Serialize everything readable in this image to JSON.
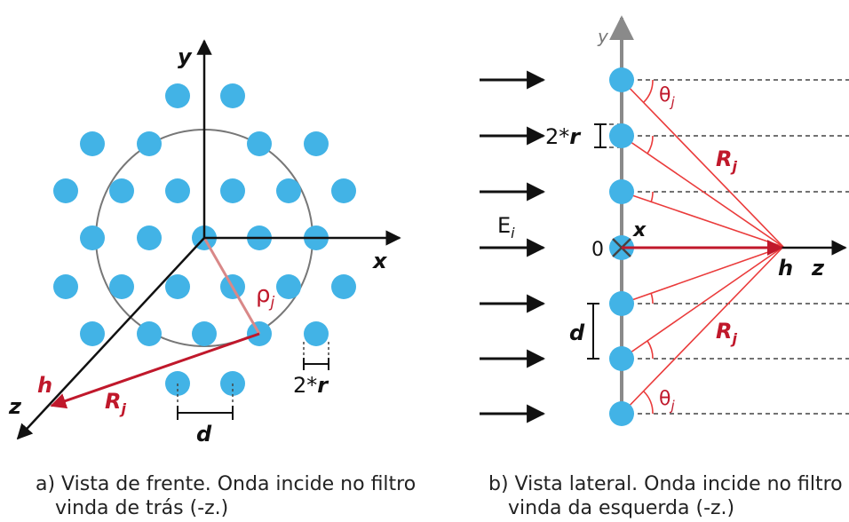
{
  "colors": {
    "dot": "#42b3e6",
    "red_line": "#ea3b3b",
    "red_arrow": "#c0182b",
    "rho_line": "#d98888",
    "axis": "#111111",
    "circle": "#777777",
    "gray_axis": "#8a8a8a"
  },
  "panel_a": {
    "axis_y": "y",
    "axis_x": "x",
    "axis_z": "z",
    "h": "h",
    "rho_base": "ρ",
    "rho_sub": "j",
    "R_base": "R",
    "R_sub": "j",
    "two_r_prefix": "2*",
    "two_r_var": "r",
    "d": "d",
    "caption_line1": "a) Vista de frente. Onda incide no filtro",
    "caption_line2": "vinda de trás (-z.)"
  },
  "panel_b": {
    "axis_y": "y",
    "axis_x": "x",
    "axis_z": "z",
    "h": "h",
    "zero": "0",
    "E_base": "E",
    "E_sub": "i",
    "theta_base": "θ",
    "theta_sub": "j",
    "R_base": "R",
    "R_sub": "j",
    "two_r_prefix": "2*",
    "two_r_var": "r",
    "d": "d",
    "caption_line1": "b) Vista lateral. Onda incide no filtro",
    "caption_line2": "vinda da esquerda (-z.)"
  }
}
